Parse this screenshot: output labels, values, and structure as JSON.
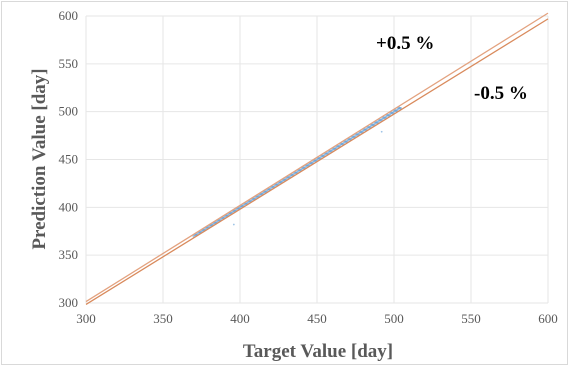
{
  "chart_data": {
    "type": "scatter",
    "title": "",
    "xlabel": "Target Value [day]",
    "ylabel": "Prediction Value [day]",
    "xlim": [
      300,
      600
    ],
    "ylim": [
      300,
      600
    ],
    "x_ticks": [
      "300",
      "350",
      "400",
      "450",
      "500",
      "550",
      "600"
    ],
    "y_ticks": [
      "300",
      "350",
      "400",
      "450",
      "500",
      "550",
      "600"
    ],
    "grid": true,
    "annotations": [
      "+0.5 %",
      "-0.5 %"
    ],
    "reference_lines": [
      {
        "label": "+0.5 %",
        "factor": 1.005,
        "x": [
          300,
          600
        ],
        "y": [
          301.5,
          603.0
        ],
        "color": "#e3a27f"
      },
      {
        "label": "-0.5 %",
        "factor": 0.995,
        "x": [
          300,
          600
        ],
        "y": [
          298.5,
          597.0
        ],
        "color": "#d98a5c"
      }
    ],
    "scatter_color": "#5b9bd5",
    "scatter_range": {
      "x": [
        370,
        505
      ]
    },
    "outliers": [
      {
        "x": 396,
        "y": 382
      },
      {
        "x": 492,
        "y": 479
      }
    ]
  }
}
